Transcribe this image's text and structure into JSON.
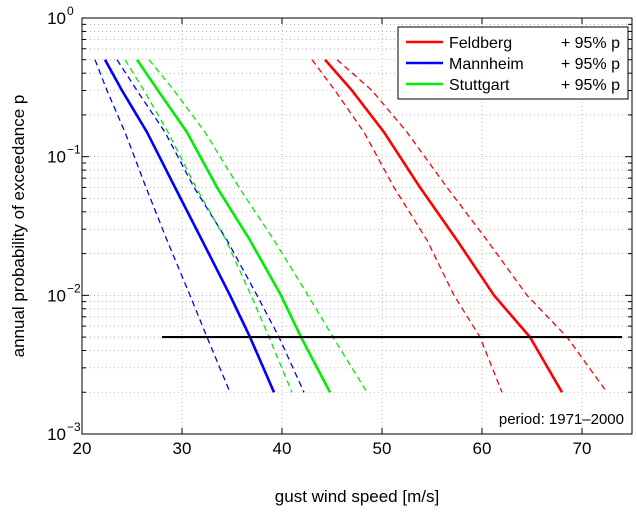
{
  "chart_data": {
    "type": "line",
    "xlabel": "gust wind speed [m/s]",
    "ylabel": "annual probability of exceedance p",
    "xlim": [
      20,
      75
    ],
    "ylim": [
      0.001,
      1
    ],
    "yscale": "log",
    "grid": true,
    "legend_position": "top-right",
    "x_ticks": [
      20,
      30,
      40,
      50,
      60,
      70
    ],
    "y_ticks": [
      {
        "value": 1,
        "base": "10",
        "exp": "0"
      },
      {
        "value": 0.1,
        "base": "10",
        "exp": "−1"
      },
      {
        "value": 0.01,
        "base": "10",
        "exp": "−2"
      },
      {
        "value": 0.001,
        "base": "10",
        "exp": "−3"
      }
    ],
    "series": [
      {
        "name": "Feldberg",
        "legend_suffix": "+ 95% p",
        "color": "#ff0000",
        "x": [
          44.3,
          47.0,
          50.2,
          53.8,
          57.5,
          61.2,
          64.8,
          68.0
        ],
        "y": [
          0.5,
          0.3,
          0.15,
          0.06,
          0.025,
          0.01,
          0.005,
          0.002
        ]
      },
      {
        "name": "Feldberg-upper",
        "color": "#ff0000",
        "dashed": true,
        "x": [
          45.5,
          49.0,
          52.5,
          56.5,
          60.5,
          64.5,
          68.5,
          72.5
        ],
        "y": [
          0.5,
          0.3,
          0.15,
          0.06,
          0.025,
          0.01,
          0.005,
          0.002
        ]
      },
      {
        "name": "Feldberg-lower",
        "color": "#ff0000",
        "dashed": true,
        "x": [
          43.0,
          45.3,
          48.2,
          51.2,
          54.5,
          57.2,
          59.8,
          62.0
        ],
        "y": [
          0.5,
          0.3,
          0.15,
          0.06,
          0.025,
          0.01,
          0.005,
          0.002
        ]
      },
      {
        "name": "Mannheim",
        "legend_suffix": "+ 95% p",
        "color": "#0000ff",
        "x": [
          22.3,
          24.0,
          26.5,
          29.3,
          32.0,
          34.8,
          36.8,
          39.2
        ],
        "y": [
          0.5,
          0.3,
          0.15,
          0.06,
          0.025,
          0.01,
          0.005,
          0.002
        ]
      },
      {
        "name": "Mannheim-upper",
        "color": "#0000ff",
        "dashed": true,
        "x": [
          23.5,
          25.5,
          28.3,
          31.2,
          34.5,
          37.5,
          39.7,
          42.2
        ],
        "y": [
          0.5,
          0.3,
          0.15,
          0.06,
          0.025,
          0.01,
          0.005,
          0.002
        ]
      },
      {
        "name": "Mannheim-lower",
        "color": "#0000ff",
        "dashed": true,
        "x": [
          21.3,
          22.5,
          24.3,
          26.4,
          28.5,
          30.8,
          32.5,
          34.8
        ],
        "y": [
          0.5,
          0.3,
          0.15,
          0.06,
          0.025,
          0.01,
          0.005,
          0.002
        ]
      },
      {
        "name": "Stuttgart",
        "legend_suffix": "+ 95% p",
        "color": "#00ee00",
        "x": [
          25.5,
          27.6,
          30.5,
          33.5,
          36.8,
          39.9,
          41.9,
          44.8
        ],
        "y": [
          0.5,
          0.3,
          0.15,
          0.06,
          0.025,
          0.01,
          0.005,
          0.002
        ]
      },
      {
        "name": "Stuttgart-upper",
        "color": "#00ee00",
        "dashed": true,
        "x": [
          26.7,
          29.2,
          32.3,
          35.7,
          39.2,
          42.6,
          45.1,
          48.5
        ],
        "y": [
          0.5,
          0.3,
          0.15,
          0.06,
          0.025,
          0.01,
          0.005,
          0.002
        ]
      },
      {
        "name": "Stuttgart-lower",
        "color": "#00ee00",
        "dashed": true,
        "x": [
          24.3,
          26.2,
          28.6,
          31.4,
          34.4,
          36.9,
          38.7,
          41.0
        ],
        "y": [
          0.5,
          0.3,
          0.15,
          0.06,
          0.025,
          0.01,
          0.005,
          0.002
        ]
      }
    ],
    "reference_line": {
      "x": [
        28,
        74
      ],
      "y": 0.005,
      "color": "#000000"
    },
    "annotation": "period: 1971–2000"
  }
}
